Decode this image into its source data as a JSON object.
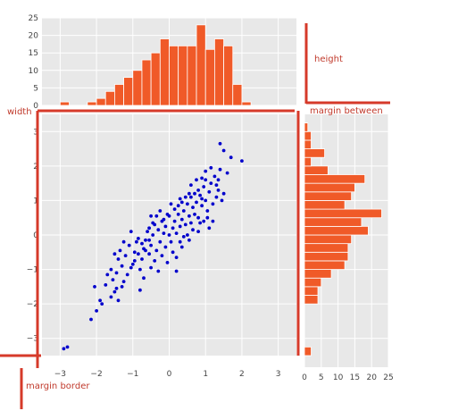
{
  "colors": {
    "panel_bg": "#e8e8e8",
    "grid": "#ffffff",
    "bar_fill": "#f05a28",
    "bar_edge": "#ffffff",
    "scatter": "#0000cc",
    "annotation": "#d63a2a"
  },
  "annotations": {
    "height": "height",
    "width": "width",
    "margin_between": "margin between",
    "margin_border": "margin border"
  },
  "chart_data": [
    {
      "type": "scatter",
      "title": "",
      "xlabel": "",
      "ylabel": "",
      "xlim": [
        -3.5,
        3.5
      ],
      "ylim": [
        -3.5,
        3.5
      ],
      "xticks": [
        "−3",
        "−2",
        "−1",
        "0",
        "1",
        "2",
        "3"
      ],
      "yticks": [
        "−3",
        "−2",
        "−1",
        "0",
        "1",
        "2",
        "3"
      ],
      "grid": true,
      "points": [
        [
          -2.9,
          -3.3
        ],
        [
          -2.8,
          -3.25
        ],
        [
          -2.15,
          -2.45
        ],
        [
          -2.0,
          -2.2
        ],
        [
          -1.85,
          -2.0
        ],
        [
          -1.9,
          -1.9
        ],
        [
          -1.6,
          -1.8
        ],
        [
          -1.4,
          -1.9
        ],
        [
          -1.5,
          -1.65
        ],
        [
          -1.3,
          -1.5
        ],
        [
          -2.05,
          -1.5
        ],
        [
          -1.75,
          -1.45
        ],
        [
          -1.55,
          -1.3
        ],
        [
          -1.45,
          -1.1
        ],
        [
          -1.6,
          -1.0
        ],
        [
          -1.3,
          -0.9
        ],
        [
          -1.4,
          -0.7
        ],
        [
          -1.5,
          -0.55
        ],
        [
          -1.35,
          -0.45
        ],
        [
          -1.2,
          -0.6
        ],
        [
          -1.1,
          -0.3
        ],
        [
          -1.05,
          0.1
        ],
        [
          -1.0,
          -0.85
        ],
        [
          -0.95,
          -0.5
        ],
        [
          -0.9,
          -0.2
        ],
        [
          -0.85,
          -0.1
        ],
        [
          -0.8,
          -1.0
        ],
        [
          -0.8,
          -1.6
        ],
        [
          -0.75,
          -0.7
        ],
        [
          -0.7,
          -1.25
        ],
        [
          -0.7,
          -0.4
        ],
        [
          -0.65,
          -0.15
        ],
        [
          -0.6,
          0.1
        ],
        [
          -0.55,
          0.2
        ],
        [
          -0.55,
          -0.55
        ],
        [
          -0.5,
          -0.95
        ],
        [
          -0.5,
          -0.3
        ],
        [
          -0.45,
          0.0
        ],
        [
          -0.4,
          -0.75
        ],
        [
          -0.4,
          0.3
        ],
        [
          -0.35,
          -0.45
        ],
        [
          -0.3,
          0.15
        ],
        [
          -0.3,
          -1.05
        ],
        [
          -0.25,
          -0.2
        ],
        [
          -0.2,
          0.4
        ],
        [
          -0.2,
          -0.6
        ],
        [
          -0.15,
          0.05
        ],
        [
          -0.1,
          -0.35
        ],
        [
          -0.1,
          0.25
        ],
        [
          -0.05,
          -0.8
        ],
        [
          0.0,
          0.0
        ],
        [
          0.0,
          0.55
        ],
        [
          0.05,
          -0.2
        ],
        [
          0.1,
          0.2
        ],
        [
          0.1,
          -0.5
        ],
        [
          0.15,
          0.4
        ],
        [
          0.2,
          0.05
        ],
        [
          0.2,
          -1.05
        ],
        [
          0.25,
          0.6
        ],
        [
          0.3,
          0.25
        ],
        [
          0.3,
          -0.2
        ],
        [
          0.35,
          0.45
        ],
        [
          0.4,
          0.7
        ],
        [
          0.4,
          -0.05
        ],
        [
          0.45,
          0.3
        ],
        [
          0.5,
          0.9
        ],
        [
          0.5,
          0.0
        ],
        [
          0.55,
          0.55
        ],
        [
          0.6,
          1.1
        ],
        [
          0.6,
          0.35
        ],
        [
          0.65,
          0.8
        ],
        [
          0.7,
          1.2
        ],
        [
          0.7,
          0.6
        ],
        [
          0.75,
          0.95
        ],
        [
          0.8,
          1.3
        ],
        [
          0.8,
          0.5
        ],
        [
          0.85,
          1.15
        ],
        [
          0.9,
          0.85
        ],
        [
          0.95,
          1.4
        ],
        [
          1.0,
          1.0
        ],
        [
          1.0,
          1.6
        ],
        [
          1.05,
          0.7
        ],
        [
          1.1,
          1.25
        ],
        [
          1.15,
          1.5
        ],
        [
          1.2,
          0.9
        ],
        [
          1.25,
          1.7
        ],
        [
          1.3,
          1.1
        ],
        [
          1.35,
          1.3
        ],
        [
          1.4,
          1.9
        ],
        [
          1.45,
          1.0
        ],
        [
          1.5,
          2.45
        ],
        [
          1.4,
          2.65
        ],
        [
          1.3,
          1.45
        ],
        [
          1.0,
          1.85
        ],
        [
          1.5,
          1.2
        ],
        [
          0.9,
          1.05
        ],
        [
          0.8,
          0.1
        ],
        [
          0.95,
          0.4
        ],
        [
          1.1,
          0.2
        ],
        [
          1.2,
          0.4
        ],
        [
          1.7,
          2.25
        ],
        [
          2.0,
          2.15
        ],
        [
          1.6,
          1.8
        ],
        [
          0.55,
          1.2
        ],
        [
          0.45,
          1.1
        ],
        [
          0.35,
          0.95
        ],
        [
          0.25,
          0.85
        ],
        [
          0.15,
          0.75
        ],
        [
          0.05,
          0.9
        ],
        [
          -0.05,
          0.6
        ],
        [
          -0.15,
          0.45
        ],
        [
          -0.25,
          0.7
        ],
        [
          -0.35,
          0.55
        ],
        [
          -0.45,
          0.35
        ],
        [
          -0.55,
          -0.15
        ],
        [
          -0.65,
          -0.45
        ],
        [
          -0.75,
          -0.25
        ],
        [
          -0.85,
          -0.55
        ],
        [
          -0.95,
          -0.75
        ],
        [
          -1.05,
          -0.95
        ],
        [
          -1.15,
          -1.15
        ],
        [
          -1.25,
          -1.35
        ],
        [
          -1.45,
          -1.55
        ],
        [
          -1.7,
          -1.15
        ],
        [
          -1.25,
          -0.2
        ],
        [
          -0.5,
          0.55
        ],
        [
          0.3,
          1.05
        ],
        [
          0.6,
          1.45
        ],
        [
          0.75,
          1.6
        ],
        [
          1.15,
          1.95
        ],
        [
          0.9,
          1.65
        ],
        [
          1.35,
          1.6
        ],
        [
          0.2,
          -0.65
        ],
        [
          0.35,
          -0.35
        ],
        [
          0.55,
          -0.15
        ],
        [
          0.65,
          0.15
        ],
        [
          0.85,
          0.35
        ],
        [
          1.05,
          0.5
        ]
      ]
    },
    {
      "type": "bar",
      "title": "",
      "orientation": "vertical",
      "ylim": [
        0,
        25
      ],
      "yticks": [
        "0",
        "5",
        "10",
        "15",
        "20",
        "25"
      ],
      "grid": true,
      "bin_edges": [
        -3.5,
        -3.25,
        -3.0,
        -2.75,
        -2.5,
        -2.25,
        -2.0,
        -1.75,
        -1.5,
        -1.25,
        -1.0,
        -0.75,
        -0.5,
        -0.25,
        0.0,
        0.25,
        0.5,
        0.75,
        1.0,
        1.25,
        1.5,
        1.75,
        2.0,
        2.25,
        2.5,
        2.75,
        3.0,
        3.25,
        3.5
      ],
      "values": [
        0,
        0,
        1,
        0,
        0,
        1,
        2,
        4,
        6,
        8,
        10,
        13,
        15,
        19,
        17,
        17,
        17,
        23,
        16,
        19,
        17,
        6,
        1,
        0,
        0,
        0,
        0,
        0
      ]
    },
    {
      "type": "bar",
      "title": "",
      "orientation": "horizontal",
      "xlim": [
        0,
        25
      ],
      "xticks": [
        "0",
        "5",
        "10",
        "15",
        "20",
        "25"
      ],
      "grid": true,
      "bin_edges": [
        -3.5,
        -3.25,
        -3.0,
        -2.75,
        -2.5,
        -2.25,
        -2.0,
        -1.75,
        -1.5,
        -1.25,
        -1.0,
        -0.75,
        -0.5,
        -0.25,
        0.0,
        0.25,
        0.5,
        0.75,
        1.0,
        1.25,
        1.5,
        1.75,
        2.0,
        2.25,
        2.5,
        2.75,
        3.0,
        3.25,
        3.5
      ],
      "values": [
        2,
        0,
        0,
        0,
        0,
        0,
        4,
        4,
        5,
        8,
        12,
        13,
        13,
        14,
        19,
        17,
        23,
        12,
        14,
        15,
        18,
        7,
        2,
        6,
        2,
        2,
        1,
        0
      ]
    }
  ]
}
